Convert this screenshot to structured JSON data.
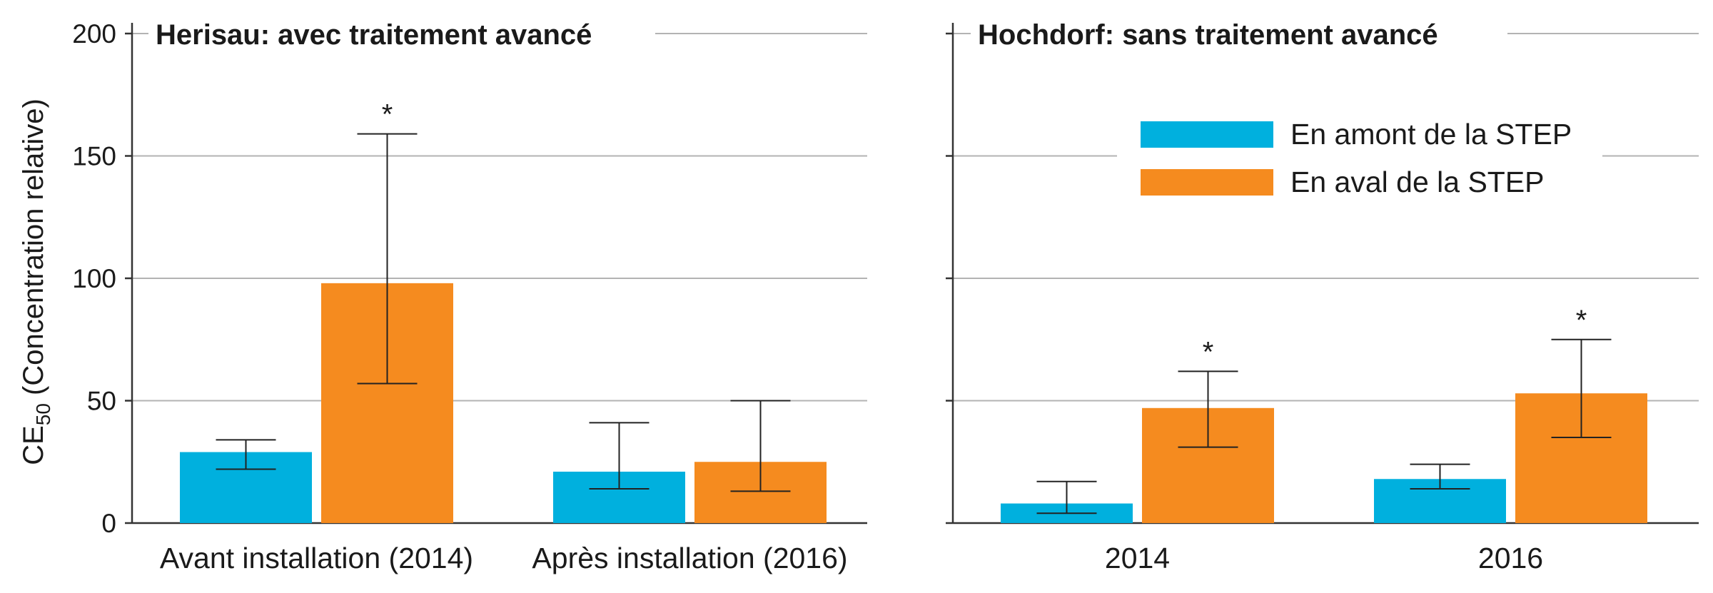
{
  "chart_data": [
    {
      "type": "bar",
      "title": "Herisau: avec traitement avancé",
      "ylabel_main": "CE",
      "ylabel_sub": "50",
      "ylabel_rest": " (Concentration relative)",
      "ylim": [
        0,
        200
      ],
      "yticks": [
        0,
        50,
        100,
        150,
        200
      ],
      "grid": true,
      "categories": [
        "Avant installation (2014)",
        "Après installation (2016)"
      ],
      "series": [
        {
          "name": "En amont de la STEP",
          "color": "#00b0de",
          "values": [
            29,
            21
          ],
          "err_low": [
            22,
            14
          ],
          "err_high": [
            34,
            41
          ],
          "significant": [
            false,
            false
          ]
        },
        {
          "name": "En aval de la STEP",
          "color": "#f58b1f",
          "values": [
            98,
            25
          ],
          "err_low": [
            57,
            13
          ],
          "err_high": [
            159,
            50
          ],
          "significant": [
            true,
            false
          ]
        }
      ]
    },
    {
      "type": "bar",
      "title": "Hochdorf: sans traitement avancé",
      "ylim": [
        0,
        200
      ],
      "yticks": [
        0,
        50,
        100,
        150,
        200
      ],
      "grid": true,
      "legend": "top-right",
      "categories": [
        "2014",
        "2016"
      ],
      "series": [
        {
          "name": "En amont de la STEP",
          "color": "#00b0de",
          "values": [
            8,
            18
          ],
          "err_low": [
            4,
            14
          ],
          "err_high": [
            17,
            24
          ],
          "significant": [
            false,
            false
          ]
        },
        {
          "name": "En aval de la STEP",
          "color": "#f58b1f",
          "values": [
            47,
            53
          ],
          "err_low": [
            31,
            35
          ],
          "err_high": [
            62,
            75
          ],
          "significant": [
            true,
            true
          ]
        }
      ]
    }
  ],
  "significance_marker": "*"
}
